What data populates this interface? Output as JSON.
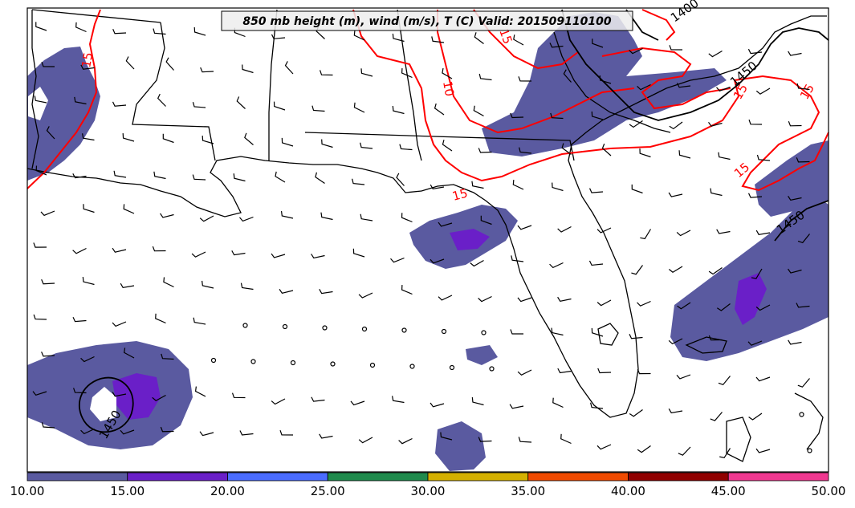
{
  "title": "850 mb height (m), wind (m/s), T (C) Valid: 201509110100",
  "colorbar": {
    "ticks": [
      "10.00",
      "15.00",
      "20.00",
      "25.00",
      "30.00",
      "35.00",
      "40.00",
      "45.00",
      "50.00"
    ],
    "colors": [
      "#5a5aa0",
      "#6a1fc8",
      "#4a6cff",
      "#1f8a4c",
      "#d4b000",
      "#f04a00",
      "#900000",
      "#f03890"
    ]
  },
  "contour_labels": {
    "temp": [
      "15",
      "10",
      "15",
      "15",
      "15",
      "15",
      "15"
    ],
    "height": [
      "1400",
      "1450",
      "1450",
      "1450"
    ]
  },
  "colors": {
    "wind_fill": "#5a5aa0",
    "wind_fill_strong": "#6a1fc8",
    "temp_contour": "#ff0000",
    "height_contour": "#000000",
    "coast": "#000000"
  }
}
